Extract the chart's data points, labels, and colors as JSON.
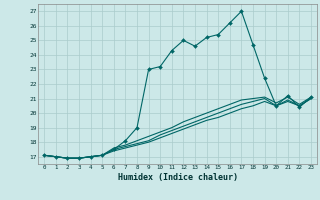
{
  "xlabel": "Humidex (Indice chaleur)",
  "background_color": "#cce8e8",
  "grid_color": "#aacccc",
  "line_color": "#006666",
  "xlim": [
    -0.5,
    23.5
  ],
  "ylim": [
    16.5,
    27.5
  ],
  "xticks": [
    0,
    1,
    2,
    3,
    4,
    5,
    6,
    7,
    8,
    9,
    10,
    11,
    12,
    13,
    14,
    15,
    16,
    17,
    18,
    19,
    20,
    21,
    22,
    23
  ],
  "yticks": [
    17,
    18,
    19,
    20,
    21,
    22,
    23,
    24,
    25,
    26,
    27
  ],
  "line1_x": [
    0,
    1,
    2,
    3,
    4,
    5,
    6,
    7,
    8,
    9,
    10,
    11,
    12,
    13,
    14,
    15,
    16,
    17,
    18,
    19,
    20,
    21,
    22,
    23
  ],
  "line1_y": [
    17.1,
    17.0,
    16.9,
    16.9,
    17.0,
    17.1,
    17.5,
    18.1,
    19.0,
    23.0,
    23.2,
    24.3,
    25.0,
    24.6,
    25.2,
    25.4,
    26.2,
    27.0,
    24.7,
    22.4,
    20.5,
    21.2,
    20.4,
    21.1
  ],
  "line2_x": [
    0,
    1,
    2,
    3,
    4,
    5,
    6,
    7,
    8,
    9,
    10,
    11,
    12,
    13,
    14,
    15,
    16,
    17,
    18,
    19,
    20,
    21,
    22,
    23
  ],
  "line2_y": [
    17.1,
    17.0,
    16.9,
    16.9,
    17.0,
    17.1,
    17.4,
    17.6,
    17.8,
    18.0,
    18.3,
    18.6,
    18.9,
    19.2,
    19.5,
    19.7,
    20.0,
    20.3,
    20.5,
    20.8,
    20.5,
    20.8,
    20.5,
    21.0
  ],
  "line3_x": [
    0,
    1,
    2,
    3,
    4,
    5,
    6,
    7,
    8,
    9,
    10,
    11,
    12,
    13,
    14,
    15,
    16,
    17,
    18,
    19,
    20,
    21,
    22,
    23
  ],
  "line3_y": [
    17.1,
    17.0,
    16.9,
    16.9,
    17.0,
    17.1,
    17.5,
    17.7,
    17.9,
    18.1,
    18.5,
    18.8,
    19.1,
    19.4,
    19.7,
    20.0,
    20.3,
    20.6,
    20.8,
    21.0,
    20.5,
    20.9,
    20.5,
    21.0
  ],
  "line4_x": [
    0,
    1,
    2,
    3,
    4,
    5,
    6,
    7,
    8,
    9,
    10,
    11,
    12,
    13,
    14,
    15,
    16,
    17,
    18,
    19,
    20,
    21,
    22,
    23
  ],
  "line4_y": [
    17.1,
    17.0,
    16.9,
    16.9,
    17.0,
    17.1,
    17.6,
    17.8,
    18.1,
    18.4,
    18.7,
    19.0,
    19.4,
    19.7,
    20.0,
    20.3,
    20.6,
    20.9,
    21.0,
    21.1,
    20.7,
    21.1,
    20.6,
    21.1
  ]
}
